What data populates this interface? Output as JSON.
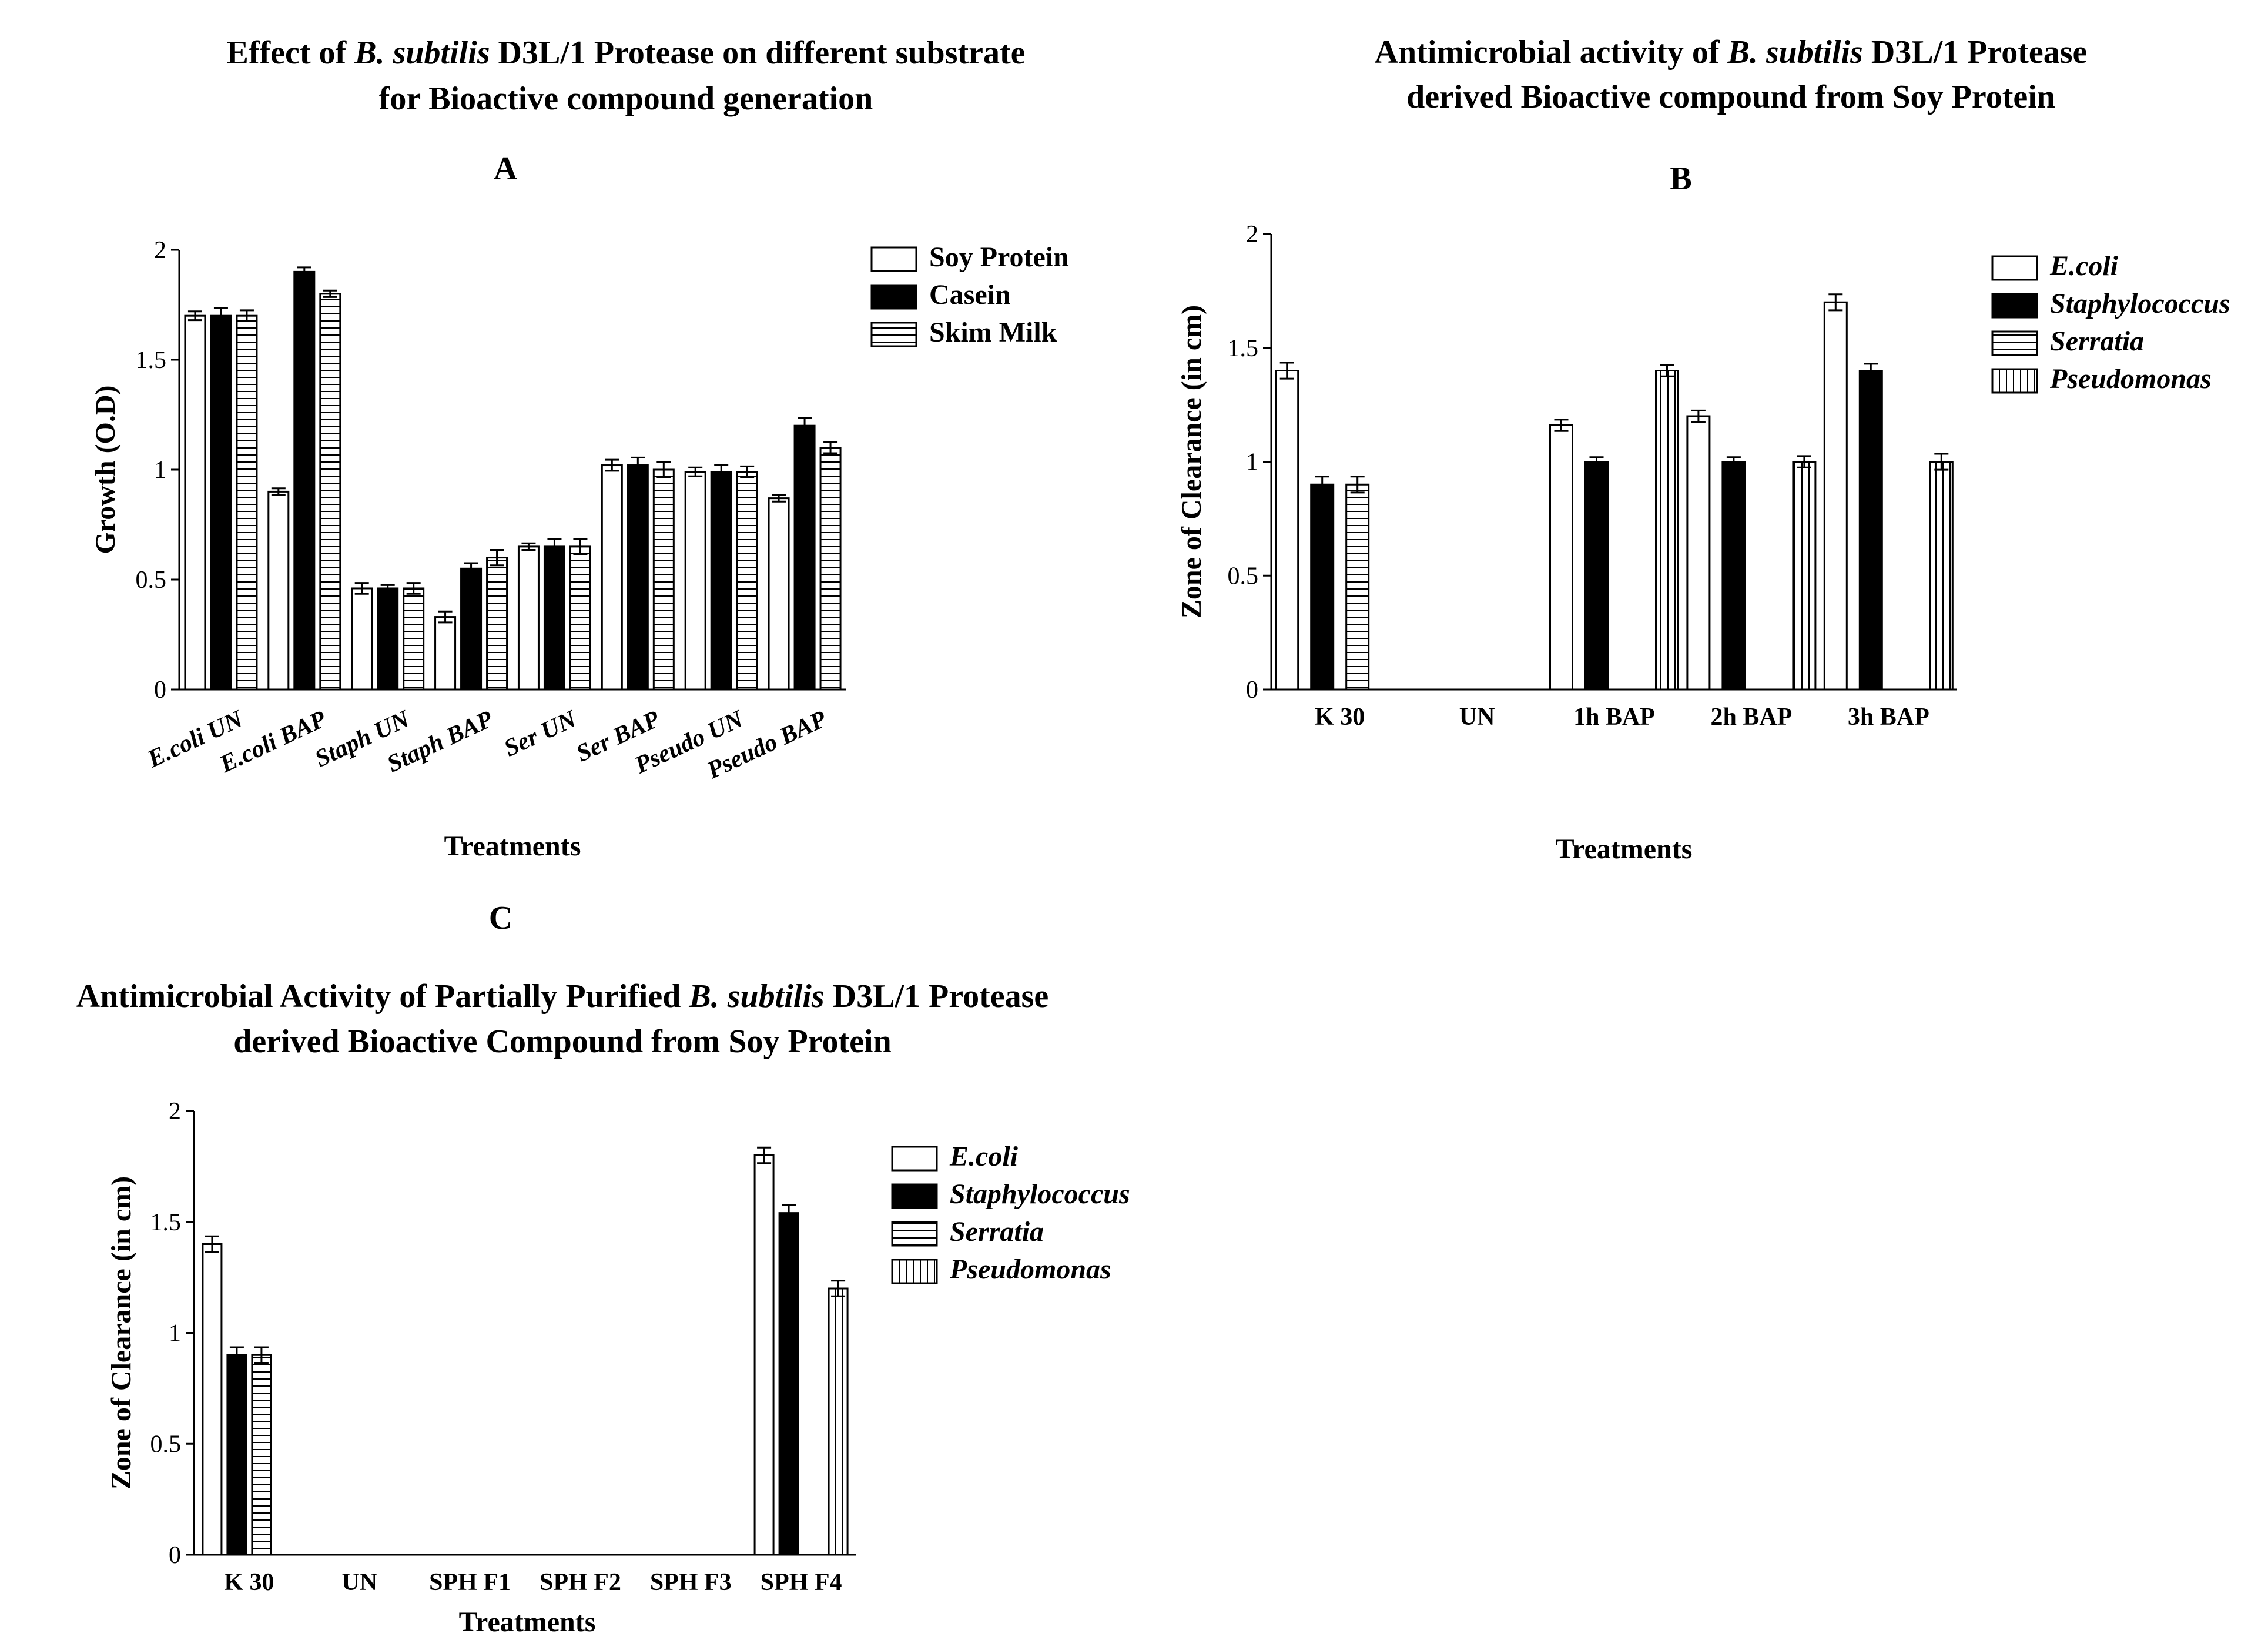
{
  "chart_data": [
    {
      "id": "A",
      "type": "bar",
      "panel_letter": "A",
      "title_parts": [
        [
          {
            "t": "Effect of ",
            "i": false
          },
          {
            "t": "B. subtilis",
            "i": true
          },
          {
            "t": " D3L/1 Protease on different substrate",
            "i": false
          }
        ],
        [
          {
            "t": "for Bioactive compound generation",
            "i": false
          }
        ]
      ],
      "xlabel": "Treatments",
      "ylabel": "Growth (O.D)",
      "ylim": [
        0,
        2
      ],
      "yticks": [
        "0",
        "0.5",
        "1",
        "1.5",
        "2"
      ],
      "ytick_values": [
        0,
        0.5,
        1,
        1.5,
        2
      ],
      "categories": [
        "E.coli UN",
        "E.coli BAP",
        "Staph UN",
        "Staph BAP",
        "Ser UN",
        "Ser BAP",
        "Pseudo UN",
        "Pseudo BAP"
      ],
      "categories_italic": true,
      "series": [
        {
          "name": "Soy Protein",
          "pattern": "white",
          "values": [
            1.7,
            0.9,
            0.46,
            0.33,
            0.65,
            1.02,
            0.99,
            0.87
          ],
          "errors": [
            0.02,
            0.015,
            0.025,
            0.025,
            0.015,
            0.025,
            0.02,
            0.015
          ]
        },
        {
          "name": "Casein",
          "pattern": "black",
          "values": [
            1.7,
            1.9,
            0.46,
            0.55,
            0.65,
            1.02,
            0.99,
            1.2
          ],
          "errors": [
            0.035,
            0.02,
            0.015,
            0.025,
            0.035,
            0.035,
            0.03,
            0.035
          ]
        },
        {
          "name": "Skim Milk",
          "pattern": "hstripes",
          "values": [
            1.7,
            1.8,
            0.46,
            0.6,
            0.65,
            1.0,
            0.99,
            1.1
          ],
          "errors": [
            0.025,
            0.015,
            0.025,
            0.035,
            0.035,
            0.035,
            0.025,
            0.025
          ]
        }
      ]
    },
    {
      "id": "B",
      "type": "bar",
      "panel_letter": "B",
      "title_parts": [
        [
          {
            "t": "Antimicrobial activity of ",
            "i": false
          },
          {
            "t": "B. subtilis",
            "i": true
          },
          {
            "t": " D3L/1 Protease",
            "i": false
          }
        ],
        [
          {
            "t": "derived Bioactive compound from Soy Protein",
            "i": false
          }
        ]
      ],
      "xlabel": "Treatments",
      "ylabel": "Zone of Clearance (in cm)",
      "ylim": [
        0,
        2
      ],
      "yticks": [
        "0",
        "0.5",
        "1",
        "1.5",
        "2"
      ],
      "ytick_values": [
        0,
        0.5,
        1,
        1.5,
        2
      ],
      "categories": [
        "K 30",
        "UN",
        "1h BAP",
        "2h BAP",
        "3h BAP"
      ],
      "categories_italic": false,
      "series": [
        {
          "name": "E.coli",
          "pattern": "white",
          "values": [
            1.4,
            0,
            1.16,
            1.2,
            1.7
          ],
          "errors": [
            0.035,
            0,
            0.025,
            0.025,
            0.035
          ]
        },
        {
          "name": "Staphylococcus",
          "pattern": "black",
          "values": [
            0.9,
            0,
            1.0,
            1.0,
            1.4
          ],
          "errors": [
            0.035,
            0,
            0.02,
            0.02,
            0.03
          ]
        },
        {
          "name": "Serratia",
          "pattern": "hstripes",
          "values": [
            0.9,
            0,
            0,
            0,
            0
          ],
          "errors": [
            0.035,
            0,
            0,
            0,
            0
          ]
        },
        {
          "name": "Pseudomonas",
          "pattern": "vstripes",
          "values": [
            0,
            0,
            1.4,
            1.0,
            1.0
          ],
          "errors": [
            0,
            0,
            0.025,
            0.025,
            0.035
          ]
        }
      ]
    },
    {
      "id": "C",
      "type": "bar",
      "panel_letter": "C",
      "title_parts": [
        [
          {
            "t": "Antimicrobial Activity of Partially Purified ",
            "i": false
          },
          {
            "t": "B. subtilis",
            "i": true
          },
          {
            "t": " D3L/1 Protease",
            "i": false
          }
        ],
        [
          {
            "t": "derived Bioactive Compound from Soy Protein",
            "i": false
          }
        ]
      ],
      "xlabel": "Treatments",
      "ylabel": "Zone of Clearance (in cm)",
      "ylim": [
        0,
        2
      ],
      "yticks": [
        "0",
        "0.5",
        "1",
        "1.5",
        "2"
      ],
      "ytick_values": [
        0,
        0.5,
        1,
        1.5,
        2
      ],
      "categories": [
        "K 30",
        "UN",
        "SPH F1",
        "SPH F2",
        "SPH F3",
        "SPH F4"
      ],
      "categories_italic": false,
      "series": [
        {
          "name": "E.coli",
          "pattern": "white",
          "values": [
            1.4,
            0,
            0,
            0,
            0,
            1.8
          ],
          "errors": [
            0.035,
            0,
            0,
            0,
            0,
            0.035
          ]
        },
        {
          "name": "Staphylococcus",
          "pattern": "black",
          "values": [
            0.9,
            0,
            0,
            0,
            0,
            1.54
          ],
          "errors": [
            0.035,
            0,
            0,
            0,
            0,
            0.035
          ]
        },
        {
          "name": "Serratia",
          "pattern": "hstripes",
          "values": [
            0.9,
            0,
            0,
            0,
            0,
            0
          ],
          "errors": [
            0.035,
            0,
            0,
            0,
            0,
            0
          ]
        },
        {
          "name": "Pseudomonas",
          "pattern": "vstripes",
          "values": [
            0,
            0,
            0,
            0,
            0,
            1.2
          ],
          "errors": [
            0,
            0,
            0,
            0,
            0,
            0.035
          ]
        }
      ]
    }
  ]
}
